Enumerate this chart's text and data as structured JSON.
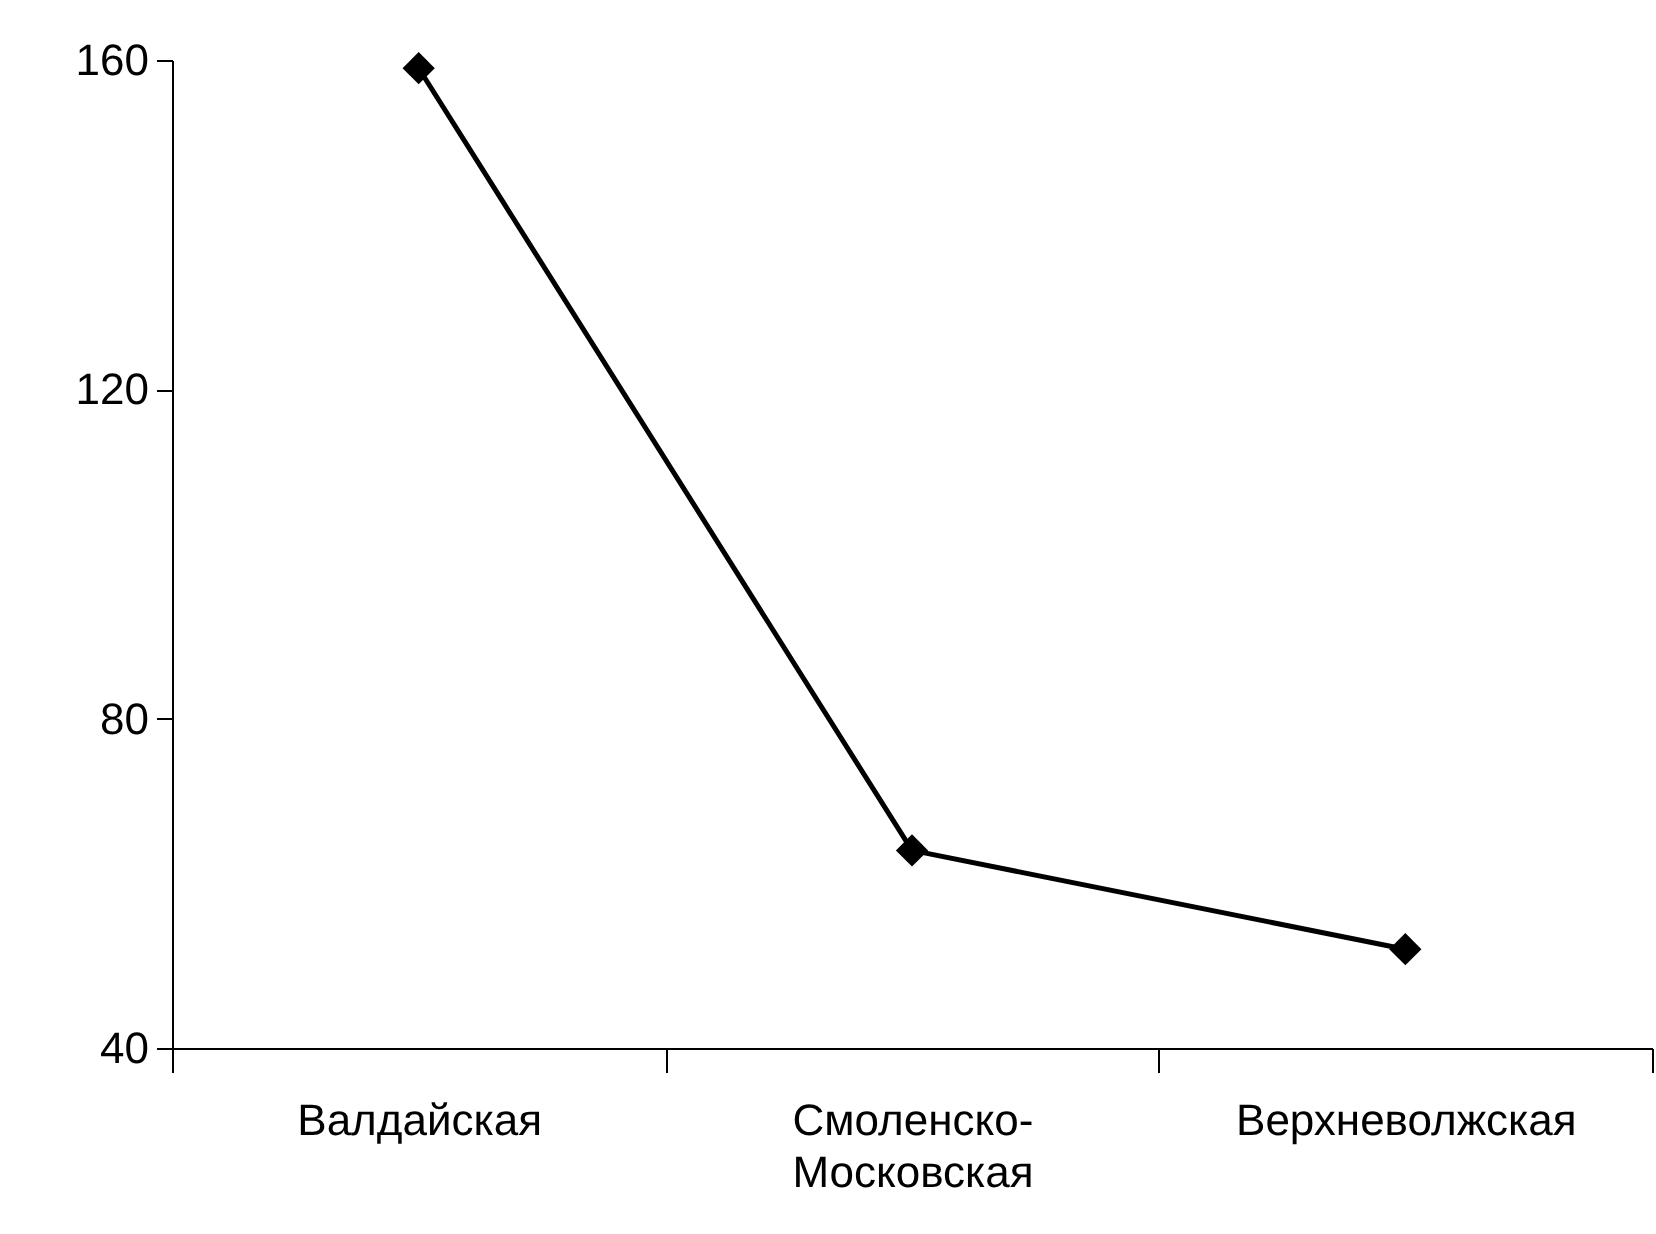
{
  "chart_data": {
    "type": "line",
    "categories": [
      "Валдайская",
      "Смоленско-Московская",
      "Верхневолжская"
    ],
    "series": [
      {
        "color": "#000000",
        "values": [
          159,
          64,
          52
        ]
      }
    ],
    "ylim": [
      40,
      160
    ],
    "yticks": [
      40,
      80,
      120,
      160
    ],
    "marker": "diamond",
    "line_style": "solid"
  }
}
